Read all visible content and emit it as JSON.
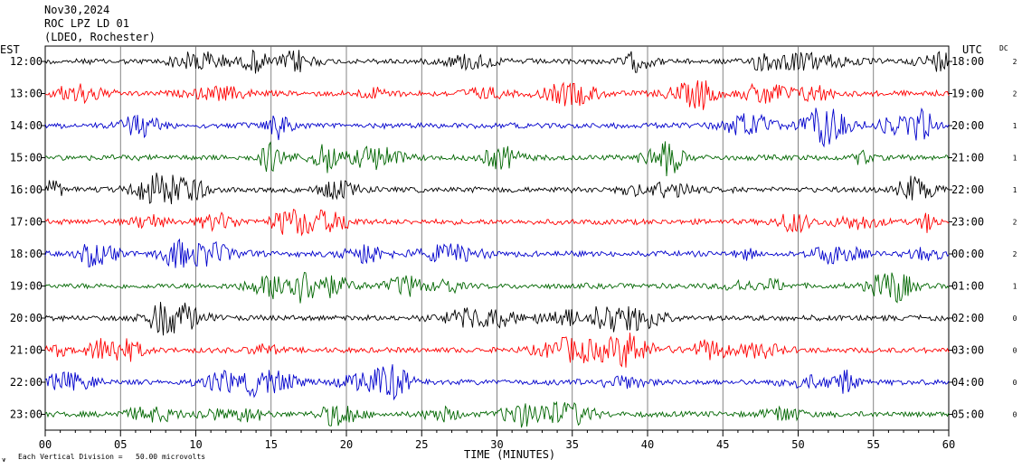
{
  "header": {
    "date": "Nov30,2024",
    "station": "ROC LPZ LD 01",
    "network": "(LDEO, Rochester)"
  },
  "labels": {
    "left_tz": "EST",
    "right_tz": "UTC",
    "dc": "DC",
    "xlabel": "TIME (MINUTES)",
    "footer_scale": "Each Vertical Division =   50.00 microvolts"
  },
  "chart_data": {
    "type": "line",
    "title": "",
    "xlabel": "TIME (MINUTES)",
    "xlim": [
      0,
      60
    ],
    "x_ticks": [
      "00",
      "05",
      "10",
      "15",
      "20",
      "25",
      "30",
      "35",
      "40",
      "45",
      "50",
      "55",
      "60"
    ],
    "grid": true,
    "trace_colors": [
      "#000000",
      "#ff0000",
      "#0000cc",
      "#006600"
    ],
    "rows": [
      {
        "est": "12:00",
        "utc": "18:00",
        "dc": "2"
      },
      {
        "est": "13:00",
        "utc": "19:00",
        "dc": "2"
      },
      {
        "est": "14:00",
        "utc": "20:00",
        "dc": "1"
      },
      {
        "est": "15:00",
        "utc": "21:00",
        "dc": "1"
      },
      {
        "est": "16:00",
        "utc": "22:00",
        "dc": "1"
      },
      {
        "est": "17:00",
        "utc": "23:00",
        "dc": "2"
      },
      {
        "est": "18:00",
        "utc": "00:00",
        "dc": "2"
      },
      {
        "est": "19:00",
        "utc": "01:00",
        "dc": "1"
      },
      {
        "est": "20:00",
        "utc": "02:00",
        "dc": "0"
      },
      {
        "est": "21:00",
        "utc": "03:00",
        "dc": "0"
      },
      {
        "est": "22:00",
        "utc": "04:00",
        "dc": "0"
      },
      {
        "est": "23:00",
        "utc": "05:00",
        "dc": "0"
      }
    ]
  }
}
